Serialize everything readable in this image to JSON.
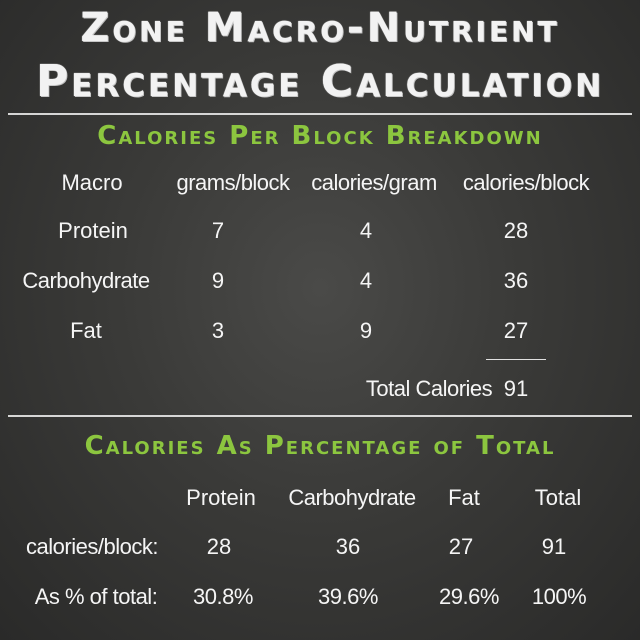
{
  "title": {
    "line1": "Zone Macro-Nutrient",
    "line2": "Percentage Calculation"
  },
  "section1": {
    "heading": "Calories Per Block Breakdown",
    "headers": [
      "Macro",
      "grams/block",
      "calories/gram",
      "calories/block"
    ],
    "rows": [
      {
        "macro": "Protein",
        "grams": "7",
        "cal_per_gram": "4",
        "cal_per_block": "28"
      },
      {
        "macro": "Carbohydrate",
        "grams": "9",
        "cal_per_gram": "4",
        "cal_per_block": "36"
      },
      {
        "macro": "Fat",
        "grams": "3",
        "cal_per_gram": "9",
        "cal_per_block": "27"
      }
    ],
    "total_label": "Total Calories",
    "total_value": "91"
  },
  "section2": {
    "heading": "Calories As Percentage of Total",
    "headers": [
      "Protein",
      "Carbohydrate",
      "Fat",
      "Total"
    ],
    "row1_label": "calories/block:",
    "row1_values": [
      "28",
      "36",
      "27",
      "91"
    ],
    "row2_label": "As % of total:",
    "row2_values": [
      "30.8%",
      "39.6%",
      "29.6%",
      "100%"
    ]
  },
  "colors": {
    "background": "#3a3a38",
    "chalk": "#f2f2f2",
    "accent": "#8cc63f"
  }
}
